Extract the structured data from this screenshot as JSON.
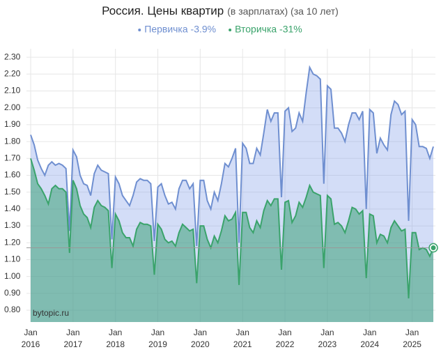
{
  "chart_data": {
    "type": "area",
    "title": "Россия. Цены квартир",
    "subtitle": "(в зарплатах) (за 10 лет)",
    "watermark": "bytopic.ru",
    "x": [
      "2016-01",
      "2016-02",
      "2016-03",
      "2016-04",
      "2016-05",
      "2016-06",
      "2016-07",
      "2016-08",
      "2016-09",
      "2016-10",
      "2016-11",
      "2016-12",
      "2017-01",
      "2017-02",
      "2017-03",
      "2017-04",
      "2017-05",
      "2017-06",
      "2017-07",
      "2017-08",
      "2017-09",
      "2017-10",
      "2017-11",
      "2017-12",
      "2018-01",
      "2018-02",
      "2018-03",
      "2018-04",
      "2018-05",
      "2018-06",
      "2018-07",
      "2018-08",
      "2018-09",
      "2018-10",
      "2018-11",
      "2018-12",
      "2019-01",
      "2019-02",
      "2019-03",
      "2019-04",
      "2019-05",
      "2019-06",
      "2019-07",
      "2019-08",
      "2019-09",
      "2019-10",
      "2019-11",
      "2019-12",
      "2020-01",
      "2020-02",
      "2020-03",
      "2020-04",
      "2020-05",
      "2020-06",
      "2020-07",
      "2020-08",
      "2020-09",
      "2020-10",
      "2020-11",
      "2020-12",
      "2021-01",
      "2021-02",
      "2021-03",
      "2021-04",
      "2021-05",
      "2021-06",
      "2021-07",
      "2021-08",
      "2021-09",
      "2021-10",
      "2021-11",
      "2021-12",
      "2022-01",
      "2022-02",
      "2022-03",
      "2022-04",
      "2022-05",
      "2022-06",
      "2022-07",
      "2022-08",
      "2022-09",
      "2022-10",
      "2022-11",
      "2022-12",
      "2023-01",
      "2023-02",
      "2023-03",
      "2023-04",
      "2023-05",
      "2023-06",
      "2023-07",
      "2023-08",
      "2023-09",
      "2023-10",
      "2023-11",
      "2023-12",
      "2024-01",
      "2024-02",
      "2024-03",
      "2024-04",
      "2024-05",
      "2024-06",
      "2024-07",
      "2024-08",
      "2024-09",
      "2024-10",
      "2024-11",
      "2024-12",
      "2025-01",
      "2025-02",
      "2025-03",
      "2025-04",
      "2025-05",
      "2025-06",
      "2025-07"
    ],
    "series": [
      {
        "name": "Первичка -3.9%",
        "color": "#6f8fd0",
        "values": [
          1.84,
          1.78,
          1.69,
          1.64,
          1.6,
          1.66,
          1.68,
          1.66,
          1.67,
          1.66,
          1.64,
          1.27,
          1.75,
          1.71,
          1.6,
          1.55,
          1.54,
          1.48,
          1.61,
          1.66,
          1.63,
          1.62,
          1.61,
          1.22,
          1.59,
          1.55,
          1.48,
          1.45,
          1.42,
          1.48,
          1.56,
          1.58,
          1.57,
          1.57,
          1.55,
          1.21,
          1.53,
          1.55,
          1.48,
          1.43,
          1.44,
          1.4,
          1.52,
          1.57,
          1.57,
          1.52,
          1.55,
          1.18,
          1.57,
          1.57,
          1.45,
          1.4,
          1.5,
          1.45,
          1.55,
          1.67,
          1.65,
          1.7,
          1.76,
          1.2,
          1.79,
          1.76,
          1.67,
          1.67,
          1.76,
          1.72,
          1.85,
          1.99,
          1.92,
          1.97,
          1.97,
          1.47,
          1.98,
          2.0,
          1.86,
          1.88,
          1.97,
          1.92,
          2.09,
          2.24,
          2.2,
          2.19,
          2.17,
          1.55,
          2.13,
          2.11,
          1.88,
          1.88,
          1.85,
          1.8,
          1.9,
          1.97,
          1.97,
          1.93,
          1.98,
          1.4,
          1.99,
          1.97,
          1.73,
          1.82,
          1.78,
          1.75,
          1.96,
          2.04,
          2.02,
          1.96,
          1.98,
          1.33,
          1.93,
          1.9,
          1.77,
          1.77,
          1.76,
          1.7,
          1.77
        ]
      },
      {
        "name": "Вторичка -31%",
        "color": "#3aa36b",
        "values": [
          1.7,
          1.63,
          1.55,
          1.52,
          1.48,
          1.43,
          1.52,
          1.54,
          1.52,
          1.52,
          1.5,
          1.14,
          1.57,
          1.52,
          1.42,
          1.37,
          1.35,
          1.29,
          1.41,
          1.45,
          1.42,
          1.41,
          1.39,
          1.05,
          1.37,
          1.33,
          1.26,
          1.23,
          1.23,
          1.18,
          1.28,
          1.32,
          1.31,
          1.31,
          1.3,
          1.01,
          1.31,
          1.28,
          1.22,
          1.2,
          1.21,
          1.18,
          1.26,
          1.31,
          1.29,
          1.27,
          1.28,
          0.96,
          1.3,
          1.3,
          1.22,
          1.17,
          1.24,
          1.2,
          1.27,
          1.36,
          1.33,
          1.34,
          1.38,
          0.95,
          1.38,
          1.38,
          1.29,
          1.26,
          1.33,
          1.29,
          1.39,
          1.45,
          1.42,
          1.46,
          1.46,
          1.04,
          1.44,
          1.45,
          1.32,
          1.36,
          1.44,
          1.41,
          1.47,
          1.54,
          1.5,
          1.49,
          1.48,
          1.05,
          1.48,
          1.46,
          1.31,
          1.32,
          1.3,
          1.26,
          1.33,
          1.41,
          1.4,
          1.37,
          1.39,
          0.99,
          1.37,
          1.36,
          1.2,
          1.25,
          1.24,
          1.2,
          1.29,
          1.33,
          1.3,
          1.27,
          1.28,
          0.87,
          1.26,
          1.26,
          1.16,
          1.17,
          1.16,
          1.12,
          1.17
        ]
      }
    ],
    "xlim": [
      "2016-01",
      "2025-07"
    ],
    "xticks": [
      {
        "value": "2016-01",
        "label": "Jan 2016"
      },
      {
        "value": "2017-01",
        "label": "Jan 2017"
      },
      {
        "value": "2018-01",
        "label": "Jan 2018"
      },
      {
        "value": "2019-01",
        "label": "Jan 2019"
      },
      {
        "value": "2020-01",
        "label": "Jan 2020"
      },
      {
        "value": "2021-01",
        "label": "Jan 2021"
      },
      {
        "value": "2022-01",
        "label": "Jan 2022"
      },
      {
        "value": "2023-01",
        "label": "Jan 2023"
      },
      {
        "value": "2024-01",
        "label": "Jan 2024"
      },
      {
        "value": "2025-01",
        "label": "Jan 2025"
      }
    ],
    "ylim": [
      0.73,
      2.35
    ],
    "yticks": [
      {
        "value": 0.8,
        "label": "0.80"
      },
      {
        "value": 0.9,
        "label": "0.90"
      },
      {
        "value": 1.0,
        "label": "1.00"
      },
      {
        "value": 1.1,
        "label": "1.10"
      },
      {
        "value": 1.2,
        "label": "1.20"
      },
      {
        "value": 1.3,
        "label": "1.30"
      },
      {
        "value": 1.4,
        "label": "1.40"
      },
      {
        "value": 1.5,
        "label": "1.50"
      },
      {
        "value": 1.6,
        "label": "1.60"
      },
      {
        "value": 1.7,
        "label": "1.70"
      },
      {
        "value": 1.8,
        "label": "1.80"
      },
      {
        "value": 1.9,
        "label": "1.90"
      },
      {
        "value": 2.0,
        "label": "2.00"
      },
      {
        "value": 2.1,
        "label": "2.10"
      },
      {
        "value": 2.2,
        "label": "2.20"
      },
      {
        "value": 2.3,
        "label": "2.30"
      }
    ],
    "grid": true
  }
}
